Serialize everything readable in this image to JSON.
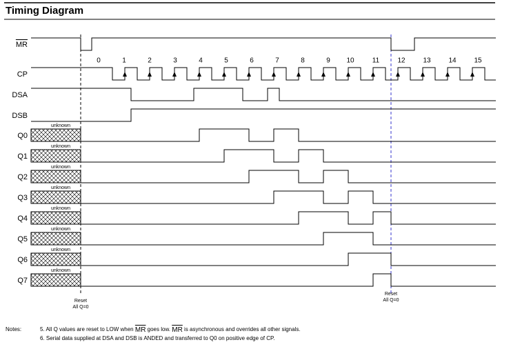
{
  "header": {
    "title": "Timing Diagram"
  },
  "signals": [
    {
      "label": "MR"
    },
    {
      "label": "CP"
    },
    {
      "label": "DSA"
    },
    {
      "label": "DSB"
    },
    {
      "label": "Q0",
      "note": "unknown"
    },
    {
      "label": "Q1",
      "note": "unknown"
    },
    {
      "label": "Q2",
      "note": "unknown"
    },
    {
      "label": "Q3",
      "note": "unknown"
    },
    {
      "label": "Q4",
      "note": "unknown"
    },
    {
      "label": "Q5",
      "note": "unknown"
    },
    {
      "label": "Q6",
      "note": "unknown"
    },
    {
      "label": "Q7",
      "note": "unknown"
    }
  ],
  "clock_numbers": [
    "0",
    "1",
    "2",
    "3",
    "4",
    "5",
    "6",
    "7",
    "8",
    "9",
    "10",
    "11",
    "12",
    "13",
    "14",
    "15"
  ],
  "annotations": [
    {
      "line1": "Reset",
      "line2": "All Q=0"
    },
    {
      "line1": "Reset",
      "line2": "All Q=0"
    }
  ],
  "notes": {
    "label": "Notes:",
    "items": [
      [
        "5. All Q values are reset to LOW when",
        "MR",
        "goes low.",
        "MR",
        "is asynchronous and overrides all other signals."
      ],
      "6. Serial data supplied at DSA and DSB is ANDED and transferred to Q0 on positive edge of CP."
    ]
  }
}
